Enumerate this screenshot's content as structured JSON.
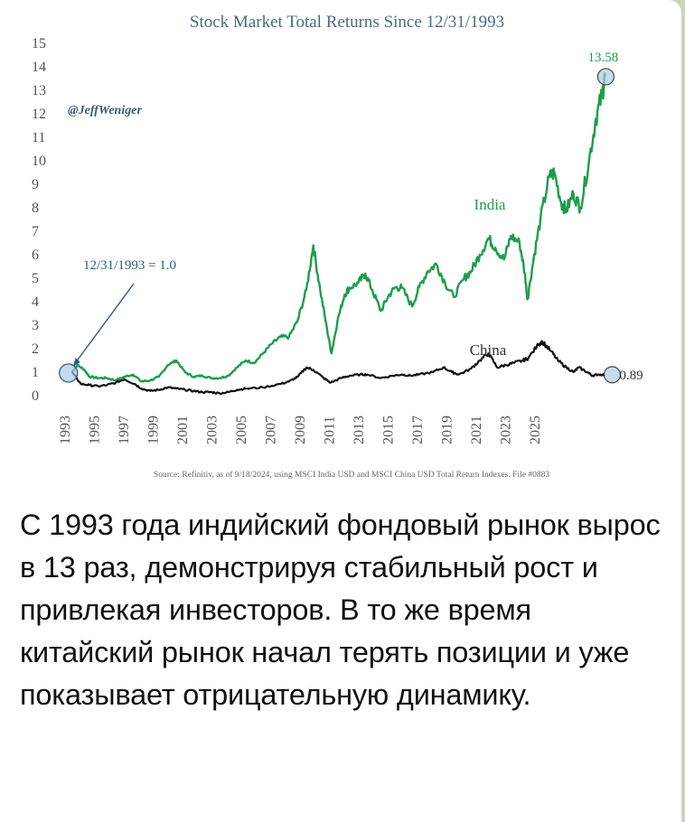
{
  "message": {
    "text": "С 1993 года индийский фондовый рынок вырос в 13 раз, демонстрируя стабильный рост и привлекая инвесторов. В то же время китайский рынок начал терять позиции и уже показывает отрицательную динамику."
  },
  "chart_data": {
    "type": "line",
    "title": "Stock Market Total Returns Since 12/31/1993",
    "watermark": "@JeffWeniger",
    "xlabel": "",
    "ylabel": "",
    "xlim": [
      1993.9,
      2024.75
    ],
    "ylim": [
      0,
      15
    ],
    "y_ticks": [
      0,
      1,
      2,
      3,
      4,
      5,
      6,
      7,
      8,
      9,
      10,
      11,
      12,
      13,
      14,
      15
    ],
    "x_ticks": [
      "1993",
      "1995",
      "1997",
      "1999",
      "2001",
      "2003",
      "2005",
      "2007",
      "2009",
      "2011",
      "2013",
      "2015",
      "2017",
      "2019",
      "2021",
      "2023",
      "2025"
    ],
    "grid": false,
    "series": [
      {
        "name": "India",
        "color": "#1e9d4a",
        "x": [
          1993.99,
          1994.3,
          1994.7,
          1995.0,
          1995.5,
          1996.0,
          1996.5,
          1997.0,
          1997.5,
          1998.0,
          1998.5,
          1999.0,
          1999.5,
          2000.0,
          2000.5,
          2001.0,
          2001.5,
          2002.0,
          2002.5,
          2003.0,
          2003.5,
          2004.0,
          2004.5,
          2005.0,
          2005.5,
          2006.0,
          2006.5,
          2007.0,
          2007.5,
          2007.9,
          2008.3,
          2008.7,
          2008.95,
          2009.3,
          2009.7,
          2010.0,
          2010.5,
          2010.9,
          2011.3,
          2011.8,
          2012.2,
          2012.6,
          2013.0,
          2013.6,
          2014.0,
          2014.5,
          2015.0,
          2015.5,
          2016.0,
          2016.6,
          2017.0,
          2017.5,
          2018.0,
          2018.4,
          2018.9,
          2019.3,
          2019.8,
          2020.1,
          2020.25,
          2020.6,
          2021.0,
          2021.5,
          2021.8,
          2022.2,
          2022.5,
          2022.9,
          2023.3,
          2023.8,
          2024.2,
          2024.55,
          2024.72
        ],
        "values": [
          1.0,
          1.3,
          1.1,
          0.8,
          0.75,
          0.75,
          0.65,
          0.8,
          0.9,
          0.6,
          0.65,
          0.8,
          1.3,
          1.5,
          1.0,
          0.8,
          0.85,
          0.75,
          0.75,
          0.85,
          1.2,
          1.5,
          1.4,
          1.8,
          2.2,
          2.5,
          2.5,
          3.2,
          4.5,
          6.4,
          4.5,
          2.8,
          1.8,
          3.2,
          4.3,
          4.6,
          4.8,
          5.2,
          4.5,
          3.6,
          4.2,
          4.6,
          4.6,
          3.8,
          4.6,
          5.3,
          5.6,
          4.8,
          4.2,
          5.0,
          5.3,
          6.0,
          6.7,
          6.3,
          5.8,
          6.8,
          6.5,
          5.2,
          4.1,
          5.8,
          7.5,
          9.3,
          9.5,
          8.2,
          7.9,
          8.6,
          8.0,
          10.0,
          11.8,
          12.8,
          13.58
        ]
      },
      {
        "name": "China",
        "color": "#111111",
        "x": [
          1993.99,
          1994.5,
          1995.0,
          1995.5,
          1996.0,
          1996.5,
          1997.0,
          1997.6,
          1998.0,
          1998.5,
          1999.0,
          1999.5,
          2000.0,
          2000.5,
          2001.0,
          2001.5,
          2002.0,
          2002.5,
          2003.0,
          2003.5,
          2004.0,
          2005.0,
          2006.0,
          2006.5,
          2007.0,
          2007.5,
          2007.9,
          2008.5,
          2008.9,
          2009.5,
          2010.0,
          2010.6,
          2011.0,
          2011.8,
          2012.5,
          2013.0,
          2013.5,
          2014.0,
          2014.8,
          2015.4,
          2015.9,
          2016.3,
          2017.0,
          2017.5,
          2018.0,
          2018.5,
          2019.0,
          2019.5,
          2020.0,
          2020.3,
          2020.9,
          2021.1,
          2021.6,
          2022.0,
          2022.5,
          2022.9,
          2023.2,
          2023.7,
          2024.0,
          2024.3,
          2024.72
        ],
        "values": [
          1.0,
          0.5,
          0.45,
          0.4,
          0.45,
          0.55,
          0.7,
          0.5,
          0.3,
          0.2,
          0.25,
          0.35,
          0.3,
          0.25,
          0.2,
          0.15,
          0.15,
          0.1,
          0.15,
          0.25,
          0.3,
          0.35,
          0.5,
          0.6,
          0.8,
          1.2,
          1.1,
          0.75,
          0.55,
          0.75,
          0.85,
          0.9,
          0.9,
          0.75,
          0.85,
          0.9,
          0.85,
          0.9,
          1.0,
          1.2,
          1.0,
          0.9,
          1.15,
          1.5,
          1.8,
          1.2,
          1.3,
          1.4,
          1.5,
          1.6,
          2.2,
          2.3,
          1.9,
          1.5,
          1.2,
          1.0,
          1.2,
          1.0,
          0.85,
          0.9,
          0.89
        ]
      }
    ],
    "annotations": [
      {
        "text": "12/31/1993 = 1.0",
        "x": 1993.99,
        "y": 1.0
      },
      {
        "text": "13.58",
        "x": 2024.72,
        "y": 13.58
      },
      {
        "text": "0.89",
        "x": 2024.72,
        "y": 0.89
      },
      {
        "text": "India",
        "series": "India"
      },
      {
        "text": "China",
        "series": "China"
      }
    ],
    "source": "Source: Refinitiv, as of 9/18/2024, using MSCI India USD and MSCI China USD Total Return Indexes. File #0883"
  }
}
